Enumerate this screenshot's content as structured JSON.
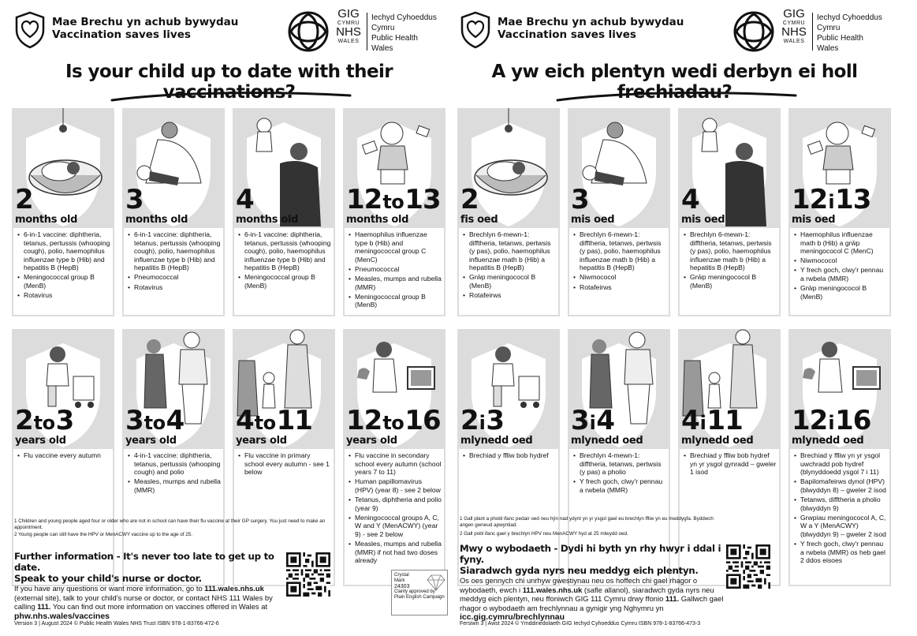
{
  "english": {
    "header_line1": "Mae Brechu yn achub bywydau",
    "header_line2": "Vaccination saves lives",
    "nhs_gig": "GIG",
    "nhs_cymru": "CYMRU",
    "nhs_nhs": "NHS",
    "nhs_wales": "WALES",
    "org_line1": "Iechyd Cyhoeddus",
    "org_line2": "Cymru",
    "org_line3": "Public Health",
    "org_line4": "Wales",
    "title": "Is your child up to date with their vaccinations?",
    "cards": [
      {
        "age": "2",
        "unit": "months old",
        "items": [
          "6-in-1 vaccine: diphtheria, tetanus, pertussis (whooping cough), polio, haemophilus influenzae type b (Hib) and hepatitis B (HepB)",
          "Meningococcal group B (MenB)",
          "Rotavirus"
        ]
      },
      {
        "age": "3",
        "unit": "months old",
        "items": [
          "6-in-1 vaccine: diphtheria, tetanus, pertussis (whooping cough), polio, haemophilus influenzae type b (Hib) and hepatitis B (HepB)",
          "Pneumococcal",
          "Rotavirus"
        ]
      },
      {
        "age": "4",
        "unit": "months old",
        "items": [
          "6-in-1 vaccine: diphtheria, tetanus, pertussis (whooping cough), polio, haemophilus influenzae type b (Hib) and hepatitis B (HepB)",
          "Meningococcal group B (MenB)"
        ]
      },
      {
        "age_a": "12",
        "age_w": "to",
        "age_b": "13",
        "unit": "months old",
        "items": [
          "Haemophilus influenzae type b (Hib) and meningococcal group C (MenC)",
          "Pneumococcal",
          "Measles, mumps and rubella (MMR)",
          "Meningococcal group B (MenB)"
        ]
      },
      {
        "age_a": "2",
        "age_w": "to",
        "age_b": "3",
        "unit": "years old",
        "items": [
          "Flu vaccine every autumn"
        ]
      },
      {
        "age_a": "3",
        "age_w": "to",
        "age_b": "4",
        "unit": "years old",
        "items": [
          "4-in-1 vaccine: diphtheria, tetanus, pertussis (whooping cough) and polio",
          "Measles, mumps and rubella (MMR)"
        ]
      },
      {
        "age_a": "4",
        "age_w": "to",
        "age_b": "11",
        "unit": "years old",
        "items": [
          "Flu vaccine in primary school every autumn - see 1 below"
        ]
      },
      {
        "age_a": "12",
        "age_w": "to",
        "age_b": "16",
        "unit": "years old",
        "items": [
          "Flu vaccine in secondary school every autumn (school years 7 to 11)",
          "Human papillomavirus (HPV) (year 8) - see 2 below",
          "Tetanus, diphtheria and polio (year 9)",
          "Meningococcal groups A, C, W and Y (MenACWY) (year 9) - see 2 below",
          "Measles, mumps and rubella (MMR) if not had two doses already"
        ]
      }
    ],
    "footnote1": "1  Children and young people aged four or older who are not in school can have their flu vaccine at their GP surgery. You just need to make an appointment.",
    "footnote2": "2  Young people can still have the HPV or MenACWY vaccine up to the age of 25.",
    "info_heading1": "Further information - It's never too late to get up to date.",
    "info_heading2": "Speak to your child's nurse or doctor.",
    "info_text1": "If you have any questions or want more information, go to ",
    "info_link1": "111.wales.nhs.uk",
    "info_text2": " (external site), talk to your child's nurse or doctor, or contact NHS 111 Wales by calling ",
    "info_link2": "111.",
    "info_text3": " You can find out more information on vaccines offered in Wales at",
    "info_url": "phw.nhs.wales/vaccines",
    "crystal_line1": "Crystal",
    "crystal_line2": "Mark",
    "crystal_line3": "24303",
    "crystal_line4": "Clarity approved by",
    "crystal_line5": "Plain English Campaign",
    "footer": "Version 3 | August 2024   © Public Health Wales NHS Trust   ISBN 978-1-83766-472-6"
  },
  "welsh": {
    "header_line1": "Mae Brechu yn achub bywydau",
    "header_line2": "Vaccination saves lives",
    "nhs_gig": "GIG",
    "nhs_cymru": "CYMRU",
    "nhs_nhs": "NHS",
    "nhs_wales": "WALES",
    "org_line1": "Iechyd Cyhoeddus",
    "org_line2": "Cymru",
    "org_line3": "Public Health",
    "org_line4": "Wales",
    "title": "A yw eich plentyn wedi derbyn ei holl frechiadau?",
    "cards": [
      {
        "age": "2",
        "unit": "fis oed",
        "items": [
          "Brechlyn 6-mewn-1: difftheria, tetanws, pertwsis (y pas), polio, haemophilus influenzae math b (Hib) a hepatitis B (HepB)",
          "Grŵp meningococol B (MenB)",
          "Rotafeirws"
        ]
      },
      {
        "age": "3",
        "unit": "mis oed",
        "items": [
          "Brechlyn 6-mewn-1: difftheria, tetanws, pertwsis (y pas), polio, haemophilus influenzae math b (Hib) a hepatitis B (HepB)",
          "Niwmococol",
          "Rotafeirws"
        ]
      },
      {
        "age": "4",
        "unit": "mis oed",
        "items": [
          "Brechlyn 6-mewn-1: difftheria, tetanws, pertwsis (y pas), polio, haemophilus influenzae math b (Hib) a hepatitis B (HepB)",
          "Grŵp meningococol B (MenB)"
        ]
      },
      {
        "age_a": "12",
        "age_w": "i",
        "age_b": "13",
        "unit": "mis oed",
        "items": [
          "Haemophilus influenzae math b (Hib) a grŵp meningococol C (MenC)",
          "Niwmococol",
          "Y frech goch, clwy'r pennau a rwbela (MMR)",
          "Grŵp meningococol B (MenB)"
        ]
      },
      {
        "age_a": "2",
        "age_w": "i",
        "age_b": "3",
        "unit": "mlynedd oed",
        "items": [
          "Brechiad y ffliw bob hydref"
        ]
      },
      {
        "age_a": "3",
        "age_w": "i",
        "age_b": "4",
        "unit": "mlynedd oed",
        "items": [
          "Brechlyn 4-mewn-1: difftheria, tetanws, pertwsis (y pas) a pholio",
          "Y frech goch, clwy'r pennau a rwbela (MMR)"
        ]
      },
      {
        "age_a": "4",
        "age_w": "i",
        "age_b": "11",
        "unit": "mlynedd oed",
        "items": [
          "Brechiad y ffliw bob hydref yn yr ysgol gynradd – gweler 1 isod"
        ]
      },
      {
        "age_a": "12",
        "age_w": "i",
        "age_b": "16",
        "unit": "mlynedd oed",
        "items": [
          "Brechiad y ffliw yn yr ysgol uwchradd pob hydref (blynyddoedd ysgol 7 i 11)",
          "Bapilomafeirws dynol (HPV) (blwyddyn 8) – gweler 2 isod",
          "Tetanws, difftheria a pholio (blwyddyn 9)",
          "Grwpiau meningococol A, C, W a Y (MenACWY) (blwyddyn 9) – gweler 2 isod",
          "Y frech goch, clwy'r pennau a rwbela (MMR) os heb gael 2 ddos eisoes"
        ]
      }
    ],
    "footnote1": "1  Gall plant a phobl ifanc pedair oed neu hŷn nad ydynt yn yr ysgol gael eu brechlyn ffliw yn eu meddygfa. Byddwch angen gwneud apwyntiad.",
    "footnote2": "2  Gall pobl ifanc gael y brechlyn HPV neu MenACWY hyd at 25 mlwydd oed.",
    "info_heading1": "Mwy o wybodaeth - Dydi hi byth yn rhy hwyr i ddal i fyny.",
    "info_heading2": "Siaradwch gyda nyrs neu meddyg eich plentyn.",
    "info_text1": "Os oes gennych chi unrhyw gwestiynau neu os hoffech chi gael rhagor o wybodaeth, ewch i ",
    "info_link1": "111.wales.nhs.uk",
    "info_text2": " (safle allanol), siaradwch gyda nyrs neu meddyg eich plentyn, neu ffoniwch GIG 111 Cymru drwy ffonio ",
    "info_link2": "111.",
    "info_text3": " Gallwch gael rhagor o wybodaeth am frechlynnau a gynigir yng Nghymru yn",
    "info_url": "icc.gig.cymru/brechlynnau",
    "footer": "Fersiwn 3 | Awst 2024   © Ymddiriedolaeth GIG Iechyd Cyhoeddus Cymru   ISBN 978-1-83766-473-3"
  }
}
